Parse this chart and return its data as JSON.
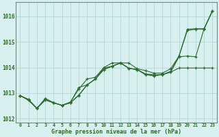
{
  "xlabel_label": "Graphe pression niveau de la mer (hPa)",
  "hours": [
    0,
    1,
    2,
    3,
    4,
    5,
    6,
    7,
    8,
    9,
    10,
    11,
    12,
    13,
    14,
    15,
    16,
    17,
    18,
    19,
    20,
    21,
    22,
    23
  ],
  "series": [
    [
      1012.9,
      1012.75,
      1012.4,
      1012.78,
      1012.62,
      1012.52,
      1012.62,
      1012.9,
      1013.32,
      1013.55,
      1013.98,
      1014.05,
      1014.18,
      1013.97,
      1013.92,
      1013.75,
      1013.72,
      1013.72,
      1013.85,
      1014.45,
      1015.5,
      1015.52,
      1015.52,
      1016.22
    ],
    [
      1012.9,
      1012.75,
      1012.4,
      1012.78,
      1012.62,
      1012.52,
      1012.65,
      1013.15,
      1013.55,
      1013.62,
      1014.0,
      1014.18,
      1014.18,
      1014.18,
      1013.95,
      1013.88,
      1013.78,
      1013.78,
      1013.95,
      1014.45,
      1015.45,
      1015.5,
      1015.5,
      1016.22
    ],
    [
      1012.9,
      1012.72,
      1012.4,
      1012.78,
      1012.62,
      1012.52,
      1012.62,
      1013.22,
      1013.32,
      1013.55,
      1013.92,
      1014.05,
      1014.18,
      1013.97,
      1013.92,
      1013.72,
      1013.68,
      1013.72,
      1013.82,
      1014.42,
      1014.45,
      1014.42,
      1015.52,
      1016.22
    ],
    [
      1012.9,
      1012.72,
      1012.4,
      1012.72,
      1012.62,
      1012.52,
      1012.62,
      1012.92,
      1013.32,
      1013.55,
      1013.92,
      1014.05,
      1014.18,
      1013.97,
      1013.92,
      1013.72,
      1013.68,
      1013.72,
      1013.82,
      1013.98,
      1013.98,
      1013.98,
      1013.98,
      1013.98
    ]
  ],
  "line_color": "#2d6a2d",
  "bg_color": "#d8f0f0",
  "grid_color": "#b8dada",
  "tick_label_color": "#2d6a2d",
  "xlabel_color": "#2d6a2d",
  "ylim": [
    1011.85,
    1016.55
  ],
  "yticks": [
    1012,
    1013,
    1014,
    1015,
    1016
  ],
  "xticks": [
    0,
    1,
    2,
    3,
    4,
    5,
    6,
    7,
    8,
    9,
    10,
    11,
    12,
    13,
    14,
    15,
    16,
    17,
    18,
    19,
    20,
    21,
    22,
    23
  ]
}
